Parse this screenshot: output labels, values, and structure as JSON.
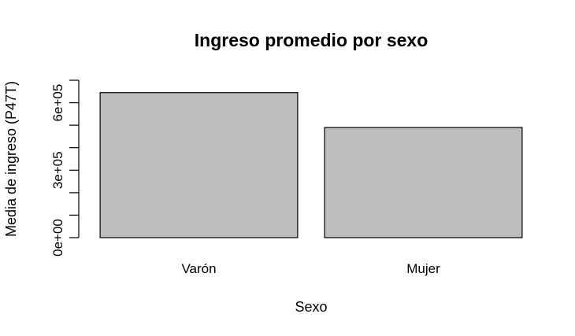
{
  "chart_data": {
    "type": "bar",
    "title": "Ingreso promedio por sexo",
    "xlabel": "Sexo",
    "ylabel": "Media de ingreso (P47T)",
    "categories": [
      "Varón",
      "Mujer"
    ],
    "values": [
      645000,
      490000
    ],
    "ylim": [
      0,
      700000
    ],
    "yticks": [
      0,
      100000,
      200000,
      300000,
      400000,
      500000,
      600000,
      700000
    ],
    "ytick_labels": [
      "0e+00",
      "",
      "",
      "3e+05",
      "",
      "",
      "6e+05",
      ""
    ],
    "bar_color": "#bebebe",
    "bar_edge_color": "#000000",
    "grid": false,
    "legend": "none"
  }
}
